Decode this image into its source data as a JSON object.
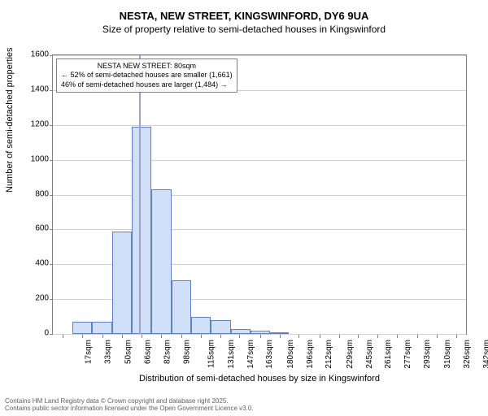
{
  "title": {
    "main": "NESTA, NEW STREET, KINGSWINFORD, DY6 9UA",
    "sub": "Size of property relative to semi-detached houses in Kingswinford"
  },
  "chart": {
    "type": "histogram",
    "background_color": "#ffffff",
    "grid_color": "#d0d0d0",
    "border_color": "#808080",
    "bar_fill": "#d0e0f8",
    "bar_stroke": "#6080c0",
    "marker_color": "#a0a0c8",
    "marker_x": 80,
    "ylim": [
      0,
      1600
    ],
    "ytick_step": 200,
    "xlim": [
      9,
      350
    ],
    "ylabel": "Number of semi-detached properties",
    "xlabel": "Distribution of semi-detached houses by size in Kingswinford",
    "xticks": [
      "17sqm",
      "33sqm",
      "50sqm",
      "66sqm",
      "82sqm",
      "98sqm",
      "115sqm",
      "131sqm",
      "147sqm",
      "163sqm",
      "180sqm",
      "196sqm",
      "212sqm",
      "229sqm",
      "245sqm",
      "261sqm",
      "277sqm",
      "293sqm",
      "310sqm",
      "326sqm",
      "342sqm"
    ],
    "xtick_vals": [
      17,
      33,
      50,
      66,
      82,
      98,
      115,
      131,
      147,
      163,
      180,
      196,
      212,
      229,
      245,
      261,
      277,
      293,
      310,
      326,
      342
    ],
    "bars": [
      {
        "x0": 25,
        "x1": 41,
        "y": 70
      },
      {
        "x0": 41,
        "x1": 58,
        "y": 70
      },
      {
        "x0": 58,
        "x1": 74,
        "y": 590
      },
      {
        "x0": 74,
        "x1": 90,
        "y": 1190
      },
      {
        "x0": 90,
        "x1": 107,
        "y": 830
      },
      {
        "x0": 107,
        "x1": 123,
        "y": 310
      },
      {
        "x0": 123,
        "x1": 139,
        "y": 100
      },
      {
        "x0": 139,
        "x1": 156,
        "y": 80
      },
      {
        "x0": 156,
        "x1": 172,
        "y": 30
      },
      {
        "x0": 172,
        "x1": 188,
        "y": 20
      },
      {
        "x0": 188,
        "x1": 204,
        "y": 10
      }
    ]
  },
  "annotation": {
    "line1": "NESTA NEW STREET: 80sqm",
    "line2": "← 52% of semi-detached houses are smaller (1,661)",
    "line3": "46% of semi-detached houses are larger (1,484) →"
  },
  "footer": {
    "line1": "Contains HM Land Registry data © Crown copyright and database right 2025.",
    "line2": "Contains public sector information licensed under the Open Government Licence v3.0."
  }
}
